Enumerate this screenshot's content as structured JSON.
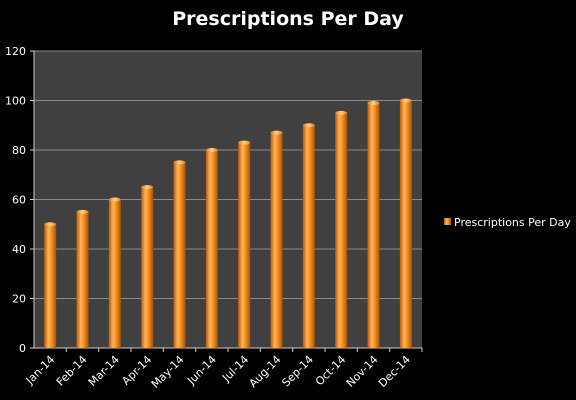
{
  "chart_data": {
    "type": "bar",
    "title": "Prescriptions Per Day",
    "xlabel": "",
    "ylabel": "",
    "categories": [
      "Jan-14",
      "Feb-14",
      "Mar-14",
      "Apr-14",
      "May-14",
      "Jun-14",
      "Jul-14",
      "Aug-14",
      "Sep-14",
      "Oct-14",
      "Nov-14",
      "Dec-14"
    ],
    "series": [
      {
        "name": "Prescriptions Per Day",
        "values": [
          50,
          55,
          60,
          65,
          75,
          80,
          83,
          87,
          90,
          95,
          99,
          100
        ]
      }
    ],
    "ylim": [
      0,
      120
    ],
    "yticks": [
      0,
      20,
      40,
      60,
      80,
      100,
      120
    ],
    "grid": true,
    "legend": "right",
    "colors": {
      "background": "#000000",
      "plot_area": "#404040",
      "gridline": "#8a8a8a",
      "bar": "#f7941d"
    }
  }
}
